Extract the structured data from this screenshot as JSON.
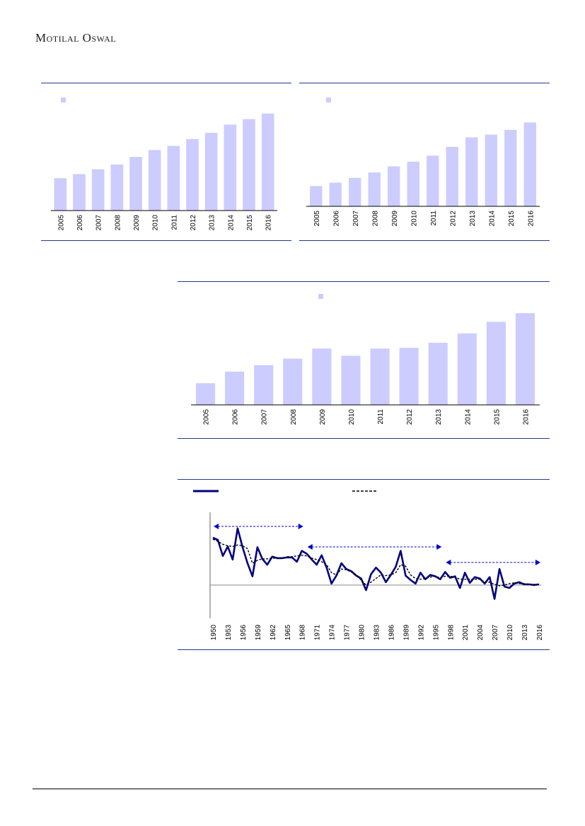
{
  "header": {
    "brand": "Motilal Oswal"
  },
  "colors": {
    "bar": "#ccccff",
    "rule": "#1f3c88",
    "series_solid": "#000080",
    "arrow": "#0000cc"
  },
  "chart_data": [
    {
      "type": "bar",
      "categories": [
        "2005",
        "2006",
        "2007",
        "2008",
        "2009",
        "2010",
        "2011",
        "2012",
        "2013",
        "2014",
        "2015",
        "2016"
      ],
      "values": [
        47,
        53,
        60,
        67,
        78,
        88,
        94,
        104,
        113,
        125,
        133,
        141
      ],
      "ylim": [
        0,
        150
      ],
      "legend": "top-left"
    },
    {
      "type": "bar",
      "categories": [
        "2005",
        "2006",
        "2007",
        "2008",
        "2009",
        "2010",
        "2011",
        "2012",
        "2013",
        "2014",
        "2015",
        "2016"
      ],
      "values": [
        30,
        35,
        42,
        50,
        59,
        66,
        75,
        88,
        102,
        106,
        113,
        124
      ],
      "ylim": [
        0,
        140
      ],
      "legend": "top-left"
    },
    {
      "type": "bar",
      "categories": [
        "2005",
        "2006",
        "2007",
        "2008",
        "2009",
        "2010",
        "2011",
        "2012",
        "2013",
        "2014",
        "2015",
        "2016"
      ],
      "values": [
        30,
        46,
        55,
        64,
        78,
        68,
        78,
        79,
        86,
        99,
        115,
        127
      ],
      "ylim": [
        0,
        135
      ],
      "legend": "top-center"
    },
    {
      "type": "line",
      "x": [
        1950,
        1951,
        1952,
        1953,
        1954,
        1955,
        1956,
        1957,
        1958,
        1959,
        1960,
        1961,
        1962,
        1963,
        1964,
        1965,
        1966,
        1967,
        1968,
        1969,
        1970,
        1971,
        1972,
        1973,
        1974,
        1975,
        1976,
        1977,
        1978,
        1979,
        1980,
        1981,
        1982,
        1983,
        1984,
        1985,
        1986,
        1987,
        1988,
        1989,
        1990,
        1991,
        1992,
        1993,
        1994,
        1995,
        1996,
        1997,
        1998,
        1999,
        2000,
        2001,
        2002,
        2003,
        2004,
        2005,
        2006,
        2007,
        2008,
        2009,
        2010,
        2011,
        2012,
        2013,
        2014,
        2015,
        2016
      ],
      "x_ticks": [
        "1950",
        "1953",
        "1956",
        "1959",
        "1962",
        "1965",
        "1968",
        "1971",
        "1974",
        "1977",
        "1980",
        "1983",
        "1986",
        "1989",
        "1992",
        "1995",
        "1998",
        "2001",
        "2004",
        "2007",
        "2010",
        "2013",
        "2016"
      ],
      "series": [
        {
          "style": "solid",
          "values": [
            6.5,
            6.2,
            4.0,
            5.3,
            3.5,
            7.8,
            5.2,
            3.0,
            1.2,
            5.2,
            3.6,
            2.8,
            3.9,
            3.7,
            3.7,
            3.8,
            3.8,
            3.2,
            4.7,
            4.3,
            3.5,
            2.8,
            4.1,
            2.4,
            0.2,
            1.3,
            3.0,
            2.2,
            1.9,
            1.3,
            0.9,
            -0.7,
            1.5,
            2.4,
            1.7,
            0.4,
            1.4,
            2.5,
            4.7,
            1.3,
            0.7,
            0.2,
            1.7,
            0.8,
            1.4,
            1.2,
            0.8,
            1.8,
            1.0,
            1.2,
            -0.4,
            1.7,
            0.3,
            1.1,
            0.9,
            0.2,
            1.1,
            -1.9,
            2.2,
            -0.2,
            -0.4,
            0.2,
            0.4,
            0.1,
            0.1,
            0.0,
            0.1
          ]
        },
        {
          "style": "dashed",
          "values": [
            6.3,
            6.0,
            5.6,
            5.4,
            5.3,
            5.5,
            5.4,
            5.0,
            3.0,
            3.4,
            3.6,
            3.6,
            3.7,
            3.7,
            3.7,
            3.9,
            3.9,
            4.0,
            4.1,
            4.0,
            3.7,
            3.5,
            3.2,
            2.8,
            1.7,
            1.4,
            2.2,
            2.1,
            1.8,
            1.4,
            0.7,
            0.0,
            0.4,
            0.9,
            1.4,
            1.3,
            1.4,
            1.7,
            2.8,
            2.6,
            1.4,
            0.9,
            0.8,
            0.9,
            1.1,
            1.2,
            1.0,
            1.2,
            1.2,
            1.1,
            0.8,
            0.8,
            0.8,
            0.8,
            0.8,
            0.4,
            0.4,
            0.1,
            -0.1,
            0.0,
            0.2,
            0.3,
            0.2,
            0.2,
            0.1,
            0.1,
            0.1
          ]
        }
      ],
      "ylim": [
        -5,
        10
      ],
      "annotations": [
        "arrow 1950-1968",
        "arrow 1969-1996",
        "arrow 1997-2016"
      ]
    }
  ]
}
